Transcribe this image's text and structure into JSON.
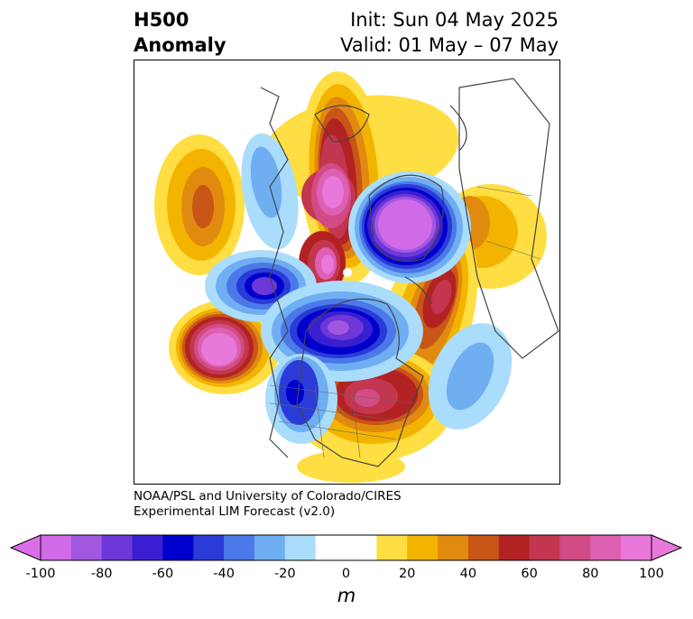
{
  "title": {
    "line1": "H500",
    "line2": "Anomaly"
  },
  "init": {
    "line1": "Init: Sun 04 May 2025",
    "line2": "Valid: 01 May – 07 May"
  },
  "credit": {
    "line1": "NOAA/PSL and University of Colorado/CIRES",
    "line2": "Experimental LIM Forecast (v2.0)"
  },
  "colorbar": {
    "unit": "m",
    "ticks": [
      "-100",
      "-80",
      "-60",
      "-40",
      "-20",
      "0",
      "20",
      "40",
      "60",
      "80",
      "100"
    ],
    "colors": [
      "#d16ae6",
      "#a257e0",
      "#6e37d8",
      "#3a1fd0",
      "#0000cc",
      "#2a3bd8",
      "#4b79e8",
      "#70aef2",
      "#aadcfc",
      "#ffffff",
      "#ffffff",
      "#fede42",
      "#f3b400",
      "#e18a10",
      "#c85616",
      "#b32222",
      "#c23650",
      "#d14c84",
      "#dd60b2",
      "#e878da"
    ],
    "under_color": "#db6ee8",
    "over_color": "#e878da"
  },
  "colors": {
    "neg_20": "#aadcfc",
    "neg_30": "#70aef2",
    "neg_40": "#4b79e8",
    "neg_50": "#2a3bd8",
    "neg_60": "#0000cc",
    "neg_70": "#3a1fd0",
    "neg_80": "#6e37d8",
    "neg_90": "#a257e0",
    "neg_100": "#d16ae6",
    "pos_20": "#fede42",
    "pos_30": "#f3b400",
    "pos_40": "#e18a10",
    "pos_50": "#c85616",
    "pos_60": "#b32222",
    "pos_70": "#c23650",
    "pos_80": "#d14c84",
    "pos_90": "#dd60b2",
    "pos_100": "#e878da"
  }
}
